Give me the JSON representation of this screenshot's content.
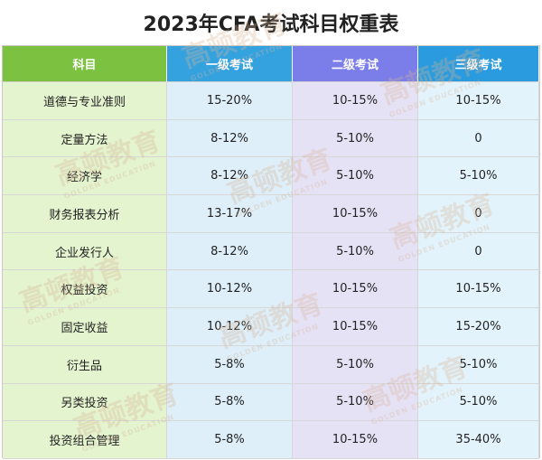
{
  "title": "2023年CFA考试科目权重表",
  "headers": [
    "科目",
    "一级考试",
    "二级考试",
    "三级考试"
  ],
  "rows": [
    [
      "道德与专业准则",
      "15-20%",
      "10-15%",
      "10-15%"
    ],
    [
      "定量方法",
      "8-12%",
      "5-10%",
      "0"
    ],
    [
      "经济学",
      "8-12%",
      "5-10%",
      "5-10%"
    ],
    [
      "财务报表分析",
      "13-17%",
      "10-15%",
      "0"
    ],
    [
      "企业发行人",
      "8-12%",
      "5-10%",
      "0"
    ],
    [
      "权益投资",
      "10-12%",
      "10-15%",
      "10-15%"
    ],
    [
      "固定收益",
      "10-12%",
      "10-15%",
      "15-20%"
    ],
    [
      "衍生品",
      "5-8%",
      "5-10%",
      "5-10%"
    ],
    [
      "另类投资",
      "5-8%",
      "5-10%",
      "5-10%"
    ],
    [
      "投资组合管理",
      "5-8%",
      "10-15%",
      "35-40%"
    ]
  ],
  "watermark": {
    "text": "高顿教育",
    "subtext": "GOLDEN EDUCATION"
  },
  "colors": {
    "header_subject": "#7cc240",
    "header_level1": "#35a2e0",
    "header_level2": "#7b7ee8",
    "header_level3": "#2a9bde"
  }
}
